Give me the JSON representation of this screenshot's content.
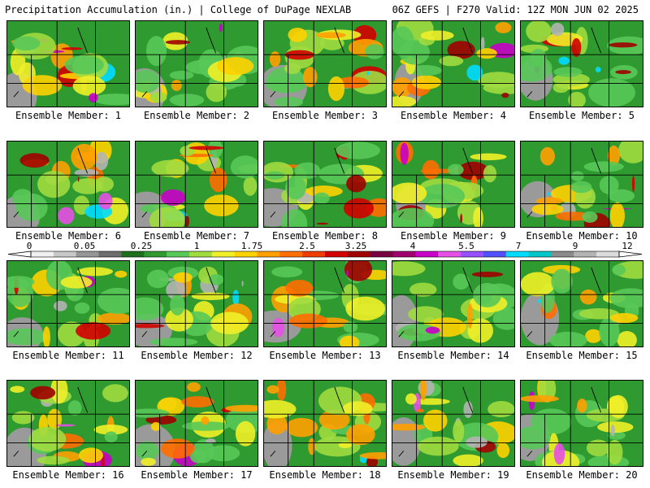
{
  "header": {
    "left": "Precipitation Accumulation (in.) | College of DuPage NEXLAB",
    "right": "06Z GEFS | F270 Valid: 12Z MON JUN 02 2025"
  },
  "legend": {
    "labels": [
      "0",
      "0.05",
      "0.25",
      "1",
      "1.75",
      "2.5",
      "3.25",
      "4",
      "5.5",
      "7",
      "9",
      "12"
    ],
    "colors": [
      "#f0f0f0",
      "#c8c8c8",
      "#969696",
      "#6e6e6e",
      "#1e6e1e",
      "#2f9a2f",
      "#58c858",
      "#a0dc40",
      "#f0f028",
      "#ffd200",
      "#ffa000",
      "#ff6e00",
      "#f03c00",
      "#d20000",
      "#a00000",
      "#780040",
      "#a0006e",
      "#c800c8",
      "#e650e6",
      "#9650ff",
      "#5050ff",
      "#00dcff",
      "#00c8c8",
      "#8c8c8c",
      "#b4b4b4",
      "#dcdcdc"
    ]
  },
  "members": [
    {
      "label": "Ensemble Member: 1"
    },
    {
      "label": "Ensemble Member: 2"
    },
    {
      "label": "Ensemble Member: 3"
    },
    {
      "label": "Ensemble Member: 4"
    },
    {
      "label": "Ensemble Member: 5"
    },
    {
      "label": "Ensemble Member: 6"
    },
    {
      "label": "Ensemble Member: 7"
    },
    {
      "label": "Ensemble Member: 8"
    },
    {
      "label": "Ensemble Member: 9"
    },
    {
      "label": "Ensemble Member: 10"
    },
    {
      "label": "Ensemble Member: 11"
    },
    {
      "label": "Ensemble Member: 12"
    },
    {
      "label": "Ensemble Member: 13"
    },
    {
      "label": "Ensemble Member: 14"
    },
    {
      "label": "Ensemble Member: 15"
    },
    {
      "label": "Ensemble Member: 16"
    },
    {
      "label": "Ensemble Member: 17"
    },
    {
      "label": "Ensemble Member: 18"
    },
    {
      "label": "Ensemble Member: 19"
    },
    {
      "label": "Ensemble Member: 20"
    }
  ]
}
